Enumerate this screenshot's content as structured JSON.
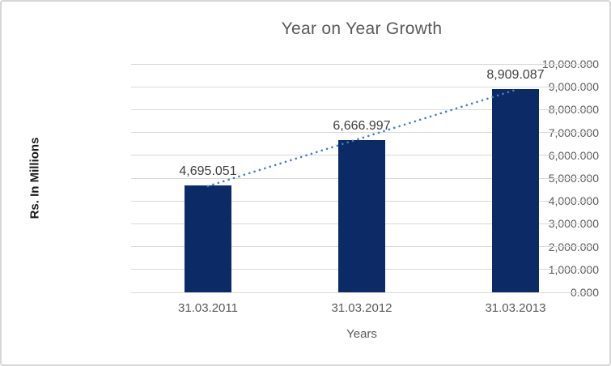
{
  "chart_data": {
    "type": "bar",
    "title": "Year on Year Growth",
    "xlabel": "Years",
    "ylabel": "Rs. In Millions",
    "categories": [
      "31.03.2011",
      "31.03.2012",
      "31.03.2013"
    ],
    "values": [
      4695.051,
      6666.997,
      8909.087
    ],
    "data_labels": [
      "4,695.051",
      "6,666.997",
      "8,909.087"
    ],
    "ylim": [
      0,
      10000
    ],
    "y_tick_interval": 1000,
    "y_tick_labels": [
      "0.000",
      "1,000.000",
      "2,000.000",
      "3,000.000",
      "4,000.000",
      "5,000.000",
      "6,000.000",
      "7,000.000",
      "8,000.000",
      "9,000.000",
      "10,000.000"
    ],
    "grid": true,
    "legend": "none",
    "trendline": {
      "type": "linear",
      "stroke_style": "round-dot",
      "color": "#4a7ebc"
    },
    "colors": {
      "bar": "#0b2a66",
      "gridline": "#d9d9d9",
      "title_text": "#595959",
      "tick_text": "#595959",
      "data_label_text": "#404040",
      "axis_title_text": "#1a1a1a",
      "frame_border": "#d7d7d7",
      "background": "#ffffff"
    }
  }
}
